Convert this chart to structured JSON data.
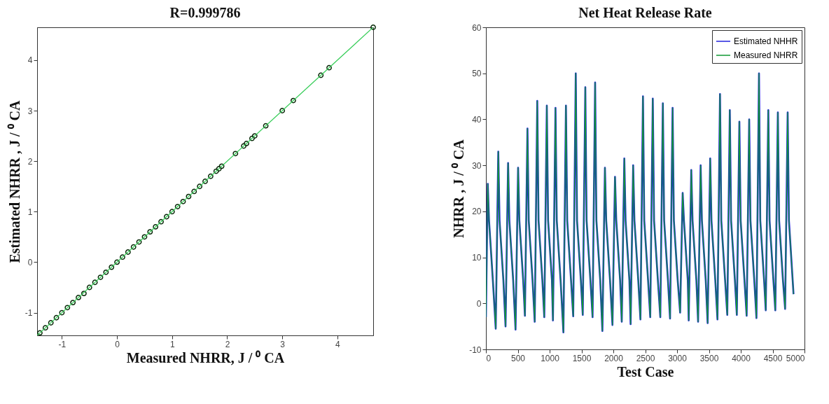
{
  "chart_data": [
    {
      "type": "scatter",
      "title": "R=0.999786",
      "xlabel": "Measured NHRR, J / ⁰ CA",
      "ylabel": "Estimated NHRR , J / ⁰ CA",
      "xlim": [
        -1.45,
        4.65
      ],
      "ylim": [
        -1.45,
        4.65
      ],
      "xticks": [
        -1,
        0,
        1,
        2,
        3,
        4
      ],
      "yticks": [
        -1,
        0,
        1,
        2,
        3,
        4
      ],
      "grid": false,
      "legend": false,
      "marker": "circle",
      "series": [
        {
          "color": "#0a2a0a",
          "x": [
            -1.4,
            -1.3,
            -1.2,
            -1.1,
            -1.0,
            -0.9,
            -0.8,
            -0.7,
            -0.6,
            -0.5,
            -0.4,
            -0.3,
            -0.2,
            -0.1,
            0.0,
            0.1,
            0.2,
            0.3,
            0.4,
            0.5,
            0.6,
            0.7,
            0.8,
            0.9,
            1.0,
            1.1,
            1.2,
            1.3,
            1.4,
            1.5,
            1.6,
            1.7,
            1.8,
            1.85,
            1.9,
            2.15,
            2.3,
            2.35,
            2.45,
            2.5,
            2.7,
            3.0,
            3.2,
            3.7,
            3.85,
            4.65
          ],
          "values": [
            -1.4,
            -1.3,
            -1.2,
            -1.1,
            -1.0,
            -0.9,
            -0.8,
            -0.7,
            -0.62,
            -0.5,
            -0.4,
            -0.3,
            -0.2,
            -0.1,
            0.0,
            0.1,
            0.2,
            0.3,
            0.4,
            0.5,
            0.6,
            0.7,
            0.8,
            0.9,
            1.0,
            1.1,
            1.2,
            1.3,
            1.4,
            1.5,
            1.6,
            1.7,
            1.8,
            1.85,
            1.9,
            2.15,
            2.3,
            2.35,
            2.45,
            2.5,
            2.7,
            3.0,
            3.2,
            3.7,
            3.85,
            4.65
          ]
        },
        {
          "type": "line",
          "marker": "none",
          "color": "#33cc55",
          "x": [
            -1.45,
            4.65
          ],
          "values": [
            -1.45,
            4.65
          ]
        }
      ]
    },
    {
      "type": "line",
      "title": "Net Heat Release Rate",
      "xlabel": "Test Case",
      "ylabel": "NHRR , J / ⁰ CA",
      "xlim": [
        0,
        5000
      ],
      "ylim": [
        -10,
        60
      ],
      "xticks": [
        0,
        500,
        1000,
        1500,
        2000,
        2500,
        3000,
        3500,
        4000,
        4500,
        5000
      ],
      "yticks": [
        -10,
        0,
        10,
        20,
        30,
        40,
        50,
        60
      ],
      "grid": false,
      "legend": "top right",
      "x": [
        0,
        29,
        49,
        109,
        154,
        194,
        214,
        274,
        308,
        348,
        368,
        428,
        465,
        505,
        525,
        585,
        612,
        652,
        672,
        732,
        766,
        806,
        826,
        886,
        916,
        956,
        976,
        1036,
        1052,
        1092,
        1112,
        1172,
        1216,
        1256,
        1276,
        1336,
        1370,
        1410,
        1430,
        1490,
        1520,
        1560,
        1580,
        1640,
        1674,
        1714,
        1734,
        1794,
        1828,
        1868,
        1888,
        1948,
        1986,
        2026,
        2046,
        2106,
        2132,
        2172,
        2192,
        2252,
        2271,
        2311,
        2331,
        2391,
        2425,
        2465,
        2485,
        2545,
        2579,
        2619,
        2639,
        2699,
        2737,
        2777,
        2797,
        2857,
        2890,
        2930,
        2950,
        3010,
        3048,
        3088,
        3108,
        3168,
        3183,
        3223,
        3243,
        3303,
        3330,
        3370,
        3390,
        3450,
        3480,
        3520,
        3540,
        3600,
        3634,
        3674,
        3694,
        3754,
        3788,
        3828,
        3848,
        3908,
        3938,
        3978,
        3998,
        4058,
        4092,
        4132,
        4152,
        4212,
        4246,
        4286,
        4306,
        4366,
        4392,
        4432,
        4452,
        4512,
        4542,
        4582,
        4602,
        4662,
        4696,
        4736,
        4756,
        4828
      ],
      "series": [
        {
          "name": "Estimated NHHR",
          "color": "#2222dd",
          "values": [
            -3,
            26,
            18,
            5,
            -5.5,
            33,
            18,
            5,
            -5,
            30.5,
            18,
            5,
            -5.7,
            29.5,
            18,
            5,
            -2.7,
            38,
            18,
            5,
            -4,
            44,
            18,
            5,
            -3,
            43,
            18,
            5,
            -3.7,
            42.5,
            18,
            5,
            -6.3,
            43,
            18,
            5,
            -2.8,
            50,
            18,
            5,
            -2.5,
            47,
            18,
            5,
            -3,
            48,
            18,
            5,
            -6,
            29.5,
            18,
            5,
            -4.7,
            27.5,
            18,
            5,
            -4,
            31.5,
            18,
            5,
            -4.5,
            30,
            18,
            5,
            -3.5,
            45,
            18,
            5,
            -3,
            44.5,
            18,
            5,
            -3,
            43.5,
            18,
            5,
            -3.3,
            42.5,
            18,
            5,
            -2,
            24,
            18,
            5,
            -3.7,
            29,
            18,
            5,
            -4,
            30,
            18,
            5,
            -4.3,
            31.5,
            18,
            5,
            -3.5,
            45.5,
            18,
            5,
            -2.5,
            42,
            18,
            5,
            -2.5,
            39.5,
            18,
            5,
            -2.7,
            40,
            18,
            5,
            -3.2,
            50,
            18,
            5,
            -1.5,
            42,
            18,
            5,
            -1.5,
            41.5,
            18,
            5,
            -1.2,
            41.5,
            18,
            2
          ]
        },
        {
          "name": "Measured NHRR",
          "color": "#119933",
          "values": [
            -3,
            26,
            18,
            5,
            -5.5,
            33,
            18,
            5,
            -5,
            30.5,
            18,
            5,
            -5.7,
            29.5,
            18,
            5,
            -2.7,
            38,
            18,
            5,
            -4,
            44,
            18,
            5,
            -3,
            43,
            18,
            5,
            -3.7,
            42.5,
            18,
            5,
            -6.3,
            43,
            18,
            5,
            -2.8,
            50,
            18,
            5,
            -2.5,
            47,
            18,
            5,
            -3,
            48,
            18,
            5,
            -6,
            29.5,
            18,
            5,
            -4.7,
            27.5,
            18,
            5,
            -4,
            31.5,
            18,
            5,
            -4.5,
            30,
            18,
            5,
            -3.5,
            45,
            18,
            5,
            -3,
            44.5,
            18,
            5,
            -3,
            43.5,
            18,
            5,
            -3.3,
            42.5,
            18,
            5,
            -2,
            24,
            18,
            5,
            -3.7,
            29,
            18,
            5,
            -4,
            30,
            18,
            5,
            -4.3,
            31.5,
            18,
            5,
            -3.5,
            45.5,
            18,
            5,
            -2.5,
            42,
            18,
            5,
            -2.5,
            39.5,
            18,
            5,
            -2.7,
            40,
            18,
            5,
            -3.2,
            50,
            18,
            5,
            -1.5,
            42,
            18,
            5,
            -1.5,
            41.5,
            18,
            5,
            -1.2,
            41.5,
            18,
            2
          ]
        }
      ]
    }
  ]
}
